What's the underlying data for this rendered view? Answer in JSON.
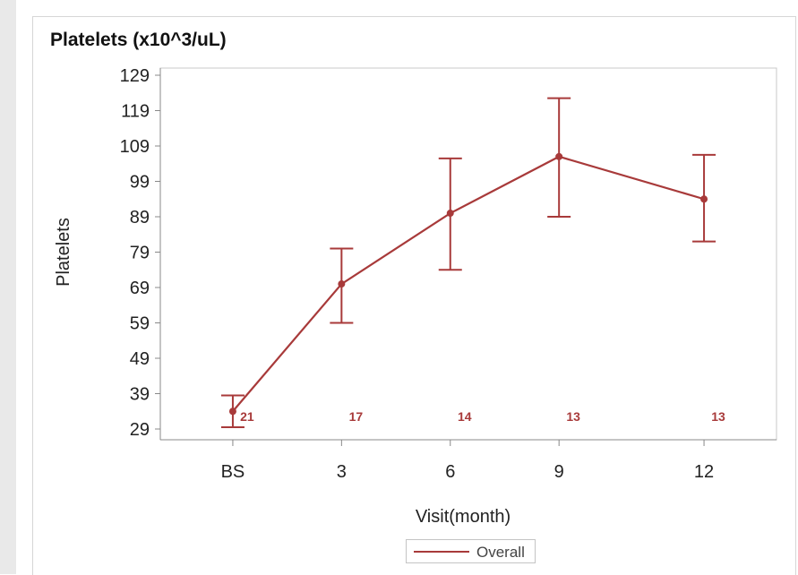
{
  "chart_data": {
    "type": "line",
    "title": "Platelets (x10^3/uL)",
    "xlabel": "Visit(month)",
    "ylabel": "Platelets",
    "categories": [
      "BS",
      "3",
      "6",
      "9",
      "12"
    ],
    "x_positions": [
      0,
      3,
      6,
      9,
      13
    ],
    "xlim": [
      -2,
      15
    ],
    "ylim": [
      29,
      129
    ],
    "yticks": [
      29,
      39,
      49,
      59,
      69,
      79,
      89,
      99,
      109,
      119,
      129
    ],
    "grid": false,
    "legend_position": "bottom",
    "series": [
      {
        "name": "Overall",
        "values": [
          34,
          70,
          90,
          106,
          94
        ],
        "lower": [
          29.5,
          59,
          74,
          89,
          82
        ],
        "upper": [
          38.5,
          80,
          105.5,
          122.5,
          106.5
        ],
        "n": [
          "21",
          "17",
          "14",
          "13",
          "13"
        ]
      }
    ]
  },
  "colors": {
    "series": "#a83a3a",
    "axis": "#888888",
    "text": "#222222"
  }
}
